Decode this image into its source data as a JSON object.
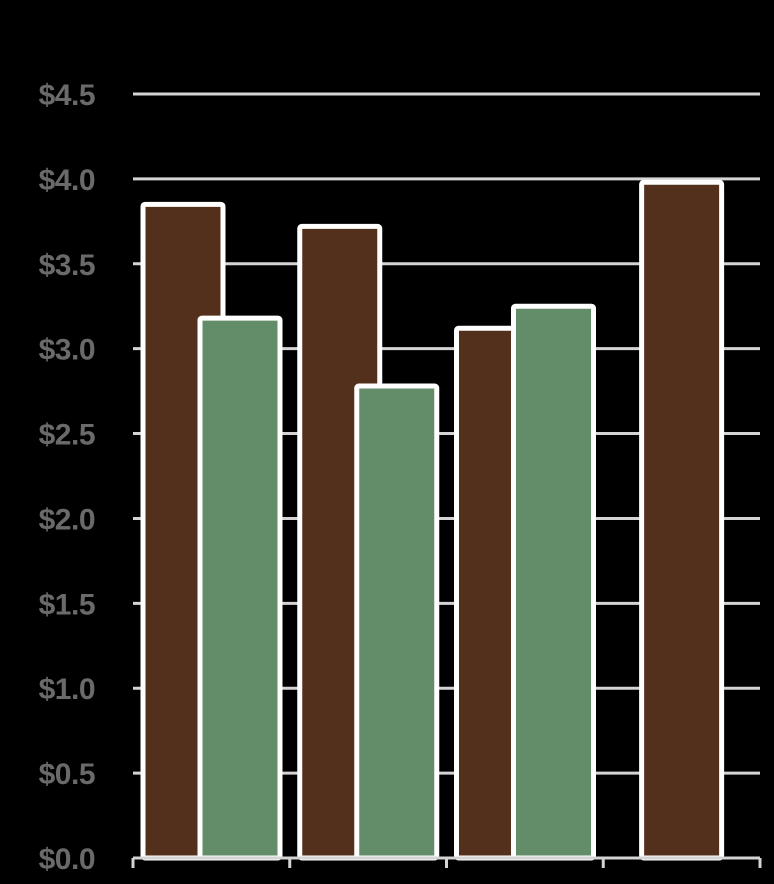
{
  "chart_data": {
    "type": "bar",
    "categories": [
      "",
      "",
      "",
      ""
    ],
    "series": [
      {
        "values": [
          3.85,
          3.72,
          3.12,
          3.98
        ]
      },
      {
        "values": [
          3.18,
          2.78,
          3.25,
          null
        ]
      }
    ],
    "title": "",
    "xlabel": "",
    "ylabel": "",
    "ylim": [
      0,
      4.5
    ],
    "yticks": [
      "$0.0",
      "$0.5",
      "$1.0",
      "$1.5",
      "$2.0",
      "$2.5",
      "$3.0",
      "$3.5",
      "$4.0",
      "$4.5"
    ],
    "grid": true,
    "legend": "none"
  },
  "colors": {
    "background": "#000000",
    "series_1": "#53301b",
    "series_2": "#638c69",
    "bar_outline": "#ffffff",
    "gridline": "#d4d4d4",
    "tick_label": "#6a6a6a"
  }
}
